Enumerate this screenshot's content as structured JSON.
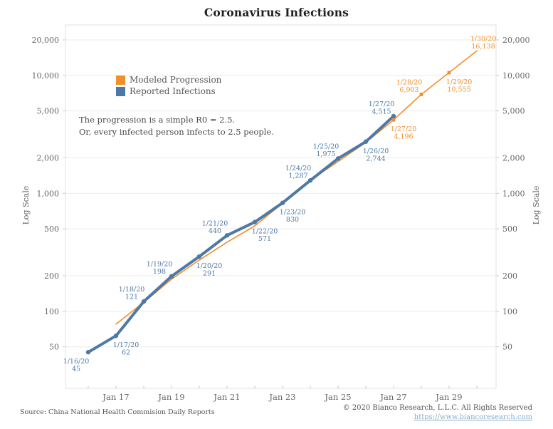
{
  "title": "Coronavirus Infections",
  "legend": {
    "items": [
      {
        "label": "Modeled Progression",
        "color": "#f28e2b"
      },
      {
        "label": "Reported Infections",
        "color": "#4e79a7"
      }
    ]
  },
  "annotation": {
    "line1": "The progression is a simple R0 = 2.5.",
    "line2": "Or, every infected person infects to 2.5 people."
  },
  "footer": {
    "source": "Source: China National Health Commision Daily Reports",
    "copyright": "© 2020 Bianco Research, L.L.C. All Rights Reserved",
    "link": "https://www.biancoresearch.com"
  },
  "chart_data": {
    "type": "line",
    "title": "Coronavirus Infections",
    "x_axis": {
      "month": "Jan 2020",
      "day_range": [
        16,
        30
      ],
      "labeled_ticks": [
        {
          "day": 17,
          "label": "Jan 17"
        },
        {
          "day": 19,
          "label": "Jan 19"
        },
        {
          "day": 21,
          "label": "Jan 21"
        },
        {
          "day": 23,
          "label": "Jan 23"
        },
        {
          "day": 25,
          "label": "Jan 25"
        },
        {
          "day": 27,
          "label": "Jan 27"
        },
        {
          "day": 29,
          "label": "Jan 29"
        }
      ]
    },
    "y_axis": {
      "label": "Log Scale",
      "scale": "log",
      "range": [
        45,
        22000
      ],
      "ticks": [
        {
          "value": 20000,
          "label": "20,000"
        },
        {
          "value": 10000,
          "label": "10,000"
        },
        {
          "value": 5000,
          "label": "5,000"
        },
        {
          "value": 2000,
          "label": "2,000"
        },
        {
          "value": 1000,
          "label": "1,000"
        },
        {
          "value": 500,
          "label": "500"
        },
        {
          "value": 200,
          "label": "200"
        },
        {
          "value": 100,
          "label": "100"
        },
        {
          "value": 50,
          "label": "50"
        }
      ],
      "mirrored_right": true
    },
    "grid": "horizontal-only",
    "legend_position": "inside-top-left",
    "series": [
      {
        "name": "Modeled Progression",
        "color": "#f28e2b",
        "line_width": 1.6,
        "points": [
          {
            "day": 17,
            "value": 78
          },
          {
            "day": 18,
            "value": 119
          },
          {
            "day": 19,
            "value": 187
          },
          {
            "day": 20,
            "value": 272
          },
          {
            "day": 21,
            "value": 385
          },
          {
            "day": 22,
            "value": 530
          },
          {
            "day": 23,
            "value": 826
          },
          {
            "day": 24,
            "value": 1290
          },
          {
            "day": 25,
            "value": 1860
          },
          {
            "day": 26,
            "value": 2700
          },
          {
            "day": 27,
            "value": 4196,
            "date": "1/27/20",
            "display": "4,196",
            "label_side": "below-right",
            "marker": true
          },
          {
            "day": 28,
            "value": 6903,
            "date": "1/28/20",
            "display": "6,903",
            "label_side": "above-left",
            "marker": true
          },
          {
            "day": 29,
            "value": 10555,
            "date": "1/29/20",
            "display": "10,555",
            "label_side": "below-right",
            "marker": true
          },
          {
            "day": 30,
            "value": 16138,
            "date": "1/30/20",
            "display": "16,138",
            "label_side": "above-right"
          }
        ]
      },
      {
        "name": "Reported Infections",
        "color": "#4e79a7",
        "line_width": 4,
        "points": [
          {
            "day": 16,
            "value": 45,
            "date": "1/16/20",
            "display": "45",
            "label_side": "below-left",
            "marker": true
          },
          {
            "day": 17,
            "value": 62,
            "date": "1/17/20",
            "display": "62",
            "label_side": "below-right",
            "marker": true
          },
          {
            "day": 18,
            "value": 121,
            "date": "1/18/20",
            "display": "121",
            "label_side": "above-left",
            "marker": true
          },
          {
            "day": 19,
            "value": 198,
            "date": "1/19/20",
            "display": "198",
            "label_side": "above-left",
            "marker": true
          },
          {
            "day": 20,
            "value": 291,
            "date": "1/20/20",
            "display": "291",
            "label_side": "below-right",
            "marker": true
          },
          {
            "day": 21,
            "value": 440,
            "date": "1/21/20",
            "display": "440",
            "label_side": "above-left",
            "marker": true
          },
          {
            "day": 22,
            "value": 571,
            "date": "1/22/20",
            "display": "571",
            "label_side": "below-right",
            "marker": true
          },
          {
            "day": 23,
            "value": 830,
            "date": "1/23/20",
            "display": "830",
            "label_side": "below-right",
            "marker": true
          },
          {
            "day": 24,
            "value": 1287,
            "date": "1/24/20",
            "display": "1,287",
            "label_side": "above-left",
            "marker": true
          },
          {
            "day": 25,
            "value": 1975,
            "date": "1/25/20",
            "display": "1,975",
            "label_side": "above-left",
            "marker": true
          },
          {
            "day": 26,
            "value": 2744,
            "date": "1/26/20",
            "display": "2,744",
            "label_side": "below-right",
            "marker": true
          },
          {
            "day": 27,
            "value": 4515,
            "date": "1/27/20",
            "display": "4,515",
            "label_side": "above-left",
            "marker": true
          }
        ]
      }
    ],
    "colors": {
      "grid": "#ececec",
      "border": "#e0e0e0",
      "axis_text": "#666666",
      "tick_mark": "#c9c9c9"
    }
  }
}
